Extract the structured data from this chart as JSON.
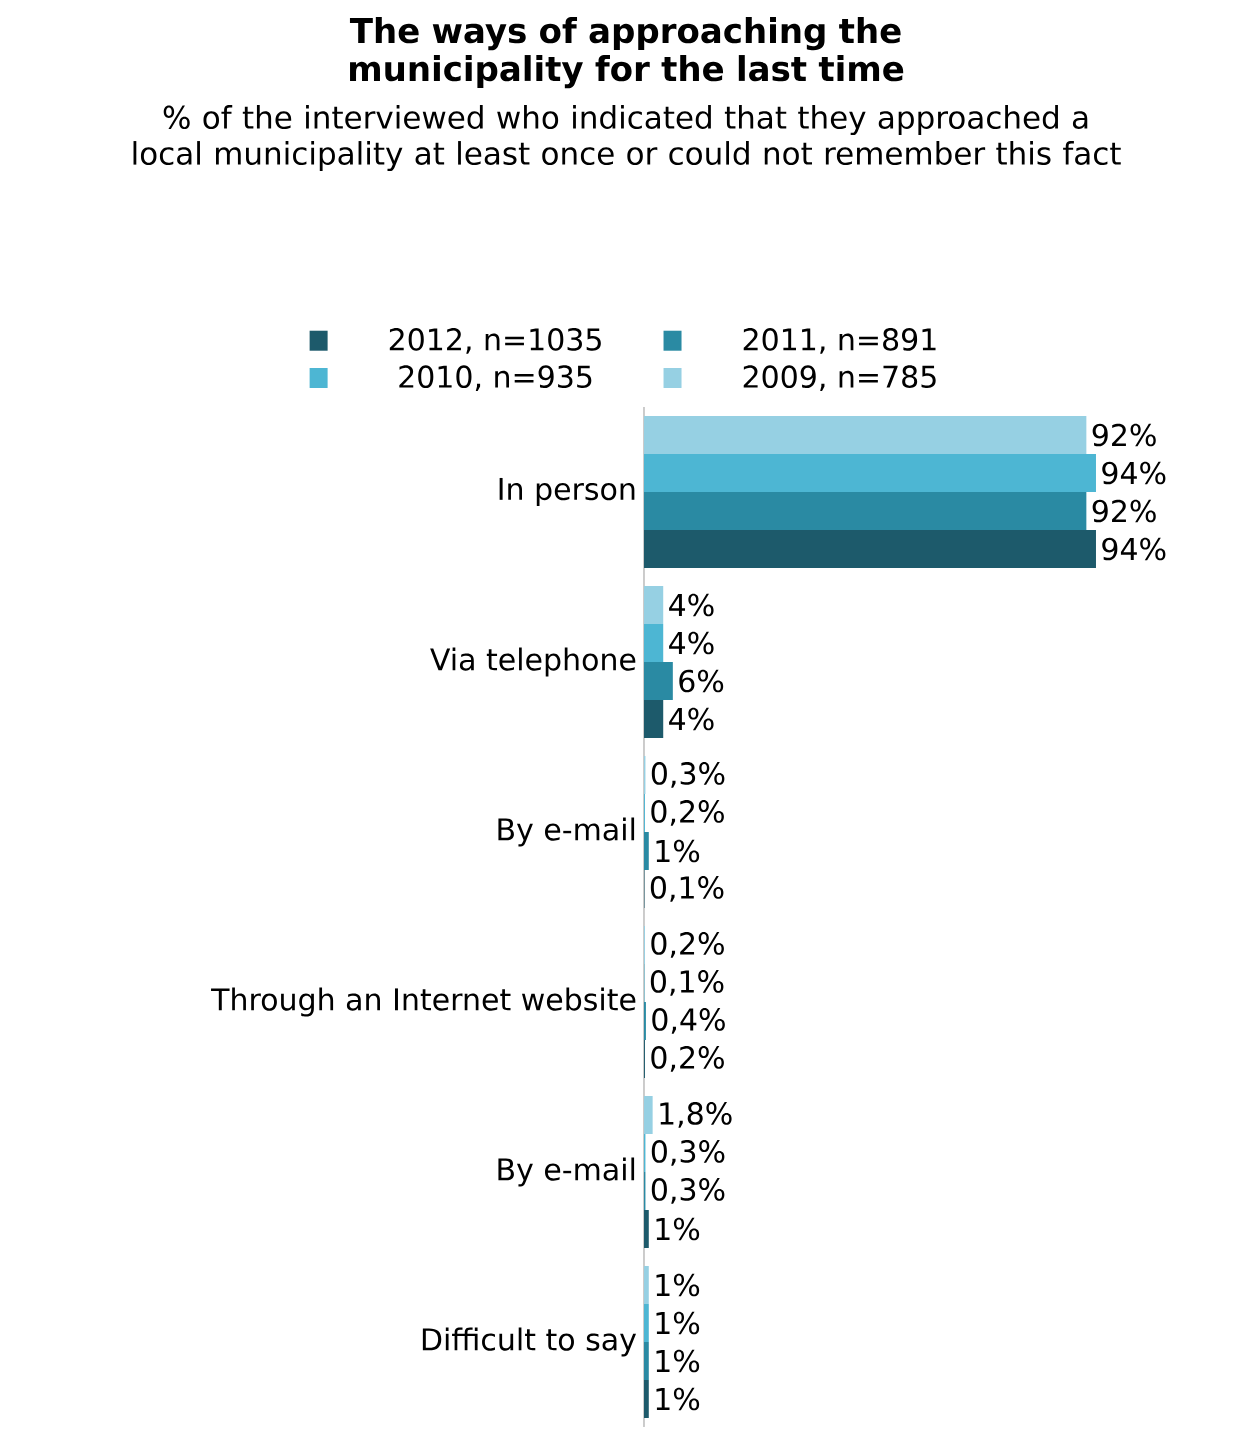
{
  "chart_data": {
    "type": "bar",
    "orientation": "horizontal",
    "title": "The ways of approaching the municipality for the last time",
    "subtitle": "% of the interviewed who indicated that they approached a local municipality at least once or could not remember this fact",
    "legend": "top",
    "categories": [
      "In person",
      "Via telephone",
      "By e-mail",
      "Through an Internet website",
      "By e-mail",
      "Difficult to say"
    ],
    "series": [
      {
        "name": "2012, n=1035",
        "color": "#1d5a6b",
        "values": [
          94,
          4,
          0.1,
          0.2,
          1,
          1
        ],
        "value_labels": [
          "94%",
          "4%",
          "0,1%",
          "0,2%",
          "1%",
          "1%"
        ]
      },
      {
        "name": "2011, n=891",
        "color": "#2a8aa3",
        "values": [
          92,
          6,
          1,
          0.4,
          0.3,
          1
        ],
        "value_labels": [
          "92%",
          "6%",
          "1%",
          "0,4%",
          "0,3%",
          "1%"
        ]
      },
      {
        "name": "2010, n=935",
        "color": "#4db6d3",
        "values": [
          94,
          4,
          0.2,
          0.1,
          0.3,
          1
        ],
        "value_labels": [
          "94%",
          "4%",
          "0,2%",
          "0,1%",
          "0,3%",
          "1%"
        ]
      },
      {
        "name": "2009, n=785",
        "color": "#96d0e3",
        "values": [
          92,
          4,
          0.3,
          0.2,
          1.8,
          1
        ],
        "value_labels": [
          "92%",
          "4%",
          "0,3%",
          "0,2%",
          "1,8%",
          "1%"
        ]
      }
    ]
  }
}
